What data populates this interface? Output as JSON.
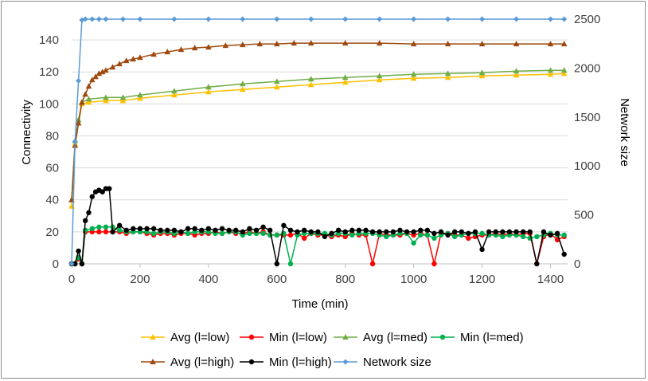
{
  "chart_data": {
    "type": "line",
    "title": "",
    "xlabel": "Time (min)",
    "ylabel": "Connectivity",
    "y2label": "Network size",
    "xlim": [
      0,
      1450
    ],
    "ylim": [
      0,
      153
    ],
    "y2lim": [
      0,
      2500
    ],
    "xticks": [
      0,
      200,
      400,
      600,
      800,
      1000,
      1200,
      1400
    ],
    "yticks": [
      0,
      20,
      40,
      60,
      80,
      100,
      120,
      140
    ],
    "y2ticks": [
      0,
      500,
      1000,
      1500,
      2000,
      2500
    ],
    "grid": "horizontal",
    "legend_position": "bottom",
    "series": [
      {
        "name": "Avg (l=low)",
        "color": "#FFC000",
        "marker": "triangle",
        "axis": "left",
        "x": [
          0,
          10,
          20,
          30,
          50,
          100,
          150,
          200,
          300,
          400,
          500,
          600,
          700,
          800,
          900,
          1000,
          1100,
          1200,
          1300,
          1400,
          1440
        ],
        "y": [
          36,
          75,
          88,
          100,
          101,
          102,
          102,
          103.5,
          105.5,
          107.5,
          109,
          110.5,
          112,
          113.5,
          115,
          116,
          116.5,
          117.5,
          118,
          118.5,
          119
        ]
      },
      {
        "name": "Min (l=low)",
        "color": "#FF0000",
        "marker": "circle",
        "axis": "left",
        "x": [
          0,
          10,
          20,
          30,
          40,
          60,
          80,
          100,
          120,
          140,
          160,
          180,
          200,
          220,
          240,
          260,
          280,
          300,
          320,
          340,
          360,
          380,
          400,
          420,
          440,
          460,
          480,
          500,
          520,
          540,
          560,
          580,
          600,
          620,
          640,
          660,
          680,
          700,
          720,
          740,
          760,
          780,
          800,
          820,
          840,
          860,
          880,
          900,
          920,
          940,
          960,
          980,
          1000,
          1020,
          1040,
          1060,
          1080,
          1100,
          1120,
          1140,
          1160,
          1180,
          1200,
          1220,
          1240,
          1260,
          1280,
          1300,
          1320,
          1340,
          1360,
          1380,
          1400,
          1420,
          1440
        ],
        "y": [
          0,
          0,
          3,
          0,
          20,
          20,
          20,
          20,
          20,
          20,
          19,
          20,
          20,
          19,
          18,
          19,
          19,
          18,
          19,
          19,
          18,
          19,
          19,
          20,
          19,
          20,
          19,
          19,
          20,
          19,
          20,
          18,
          18,
          18,
          18,
          19,
          16,
          19,
          18,
          18,
          17,
          18,
          17,
          19,
          18,
          18,
          0,
          19,
          18,
          18,
          18,
          19,
          18,
          19,
          18,
          0,
          19,
          19,
          18,
          18,
          16,
          17,
          18,
          18,
          19,
          18,
          19,
          18,
          19,
          19,
          0,
          17,
          19,
          15,
          17
        ]
      },
      {
        "name": "Avg (l=med)",
        "color": "#70AD47",
        "marker": "triangle",
        "axis": "left",
        "x": [
          0,
          10,
          20,
          30,
          50,
          100,
          150,
          200,
          300,
          400,
          500,
          600,
          700,
          800,
          900,
          1000,
          1100,
          1200,
          1300,
          1400,
          1440
        ],
        "y": [
          40,
          77,
          90,
          101,
          103,
          104,
          104,
          105.5,
          108,
          110.5,
          112.5,
          114,
          115.5,
          116.5,
          117.5,
          118.5,
          119,
          119.5,
          120.5,
          121,
          121
        ]
      },
      {
        "name": "Min (l=med)",
        "color": "#00B050",
        "marker": "circle",
        "axis": "left",
        "x": [
          0,
          10,
          20,
          30,
          40,
          60,
          80,
          100,
          120,
          140,
          160,
          180,
          200,
          220,
          240,
          260,
          280,
          300,
          320,
          340,
          360,
          380,
          400,
          420,
          440,
          460,
          480,
          500,
          520,
          540,
          560,
          580,
          600,
          620,
          640,
          660,
          680,
          700,
          720,
          740,
          760,
          780,
          800,
          820,
          840,
          860,
          880,
          900,
          920,
          940,
          960,
          980,
          1000,
          1020,
          1040,
          1060,
          1080,
          1100,
          1120,
          1140,
          1160,
          1180,
          1200,
          1220,
          1240,
          1260,
          1280,
          1300,
          1320,
          1340,
          1360,
          1380,
          1400,
          1420,
          1440
        ],
        "y": [
          0,
          0,
          4,
          0,
          21,
          22,
          23,
          23,
          23,
          21,
          20,
          20,
          20,
          20,
          19,
          20,
          20,
          19,
          20,
          19,
          20,
          20,
          20,
          19,
          19,
          20,
          20,
          18,
          19,
          19,
          19,
          18,
          18,
          19,
          0,
          18,
          19,
          19,
          19,
          19,
          18,
          19,
          19,
          18,
          19,
          19,
          19,
          18,
          17,
          18,
          19,
          19,
          13,
          18,
          18,
          16,
          18,
          19,
          17,
          18,
          19,
          19,
          19,
          18,
          18,
          17,
          18,
          18,
          17,
          16,
          17,
          18,
          19,
          18,
          18
        ]
      },
      {
        "name": "Avg (l=high)",
        "color": "#9E480E",
        "marker": "triangle",
        "axis": "left",
        "x": [
          0,
          10,
          20,
          30,
          40,
          50,
          60,
          70,
          80,
          90,
          100,
          120,
          140,
          160,
          180,
          200,
          240,
          280,
          320,
          360,
          400,
          450,
          500,
          550,
          600,
          650,
          700,
          800,
          900,
          1000,
          1100,
          1200,
          1300,
          1400,
          1440
        ],
        "y": [
          40,
          74,
          88,
          101,
          106,
          111,
          115,
          117,
          119,
          120,
          121,
          123,
          125,
          127,
          128,
          129,
          131,
          132.5,
          134,
          135,
          135.5,
          136.5,
          137,
          137.5,
          137.5,
          138,
          138,
          138,
          138,
          137.5,
          137.5,
          137.5,
          137.5,
          137.5,
          137.5
        ]
      },
      {
        "name": "Min (l=high)",
        "color": "#000000",
        "marker": "circle",
        "axis": "left",
        "x": [
          0,
          10,
          20,
          30,
          40,
          50,
          60,
          70,
          80,
          90,
          100,
          110,
          120,
          140,
          160,
          180,
          200,
          220,
          240,
          260,
          280,
          300,
          320,
          340,
          360,
          380,
          400,
          420,
          440,
          460,
          480,
          500,
          520,
          540,
          560,
          580,
          600,
          620,
          640,
          660,
          680,
          700,
          720,
          740,
          760,
          780,
          800,
          820,
          840,
          860,
          880,
          900,
          920,
          940,
          960,
          980,
          1000,
          1020,
          1040,
          1060,
          1080,
          1100,
          1120,
          1140,
          1160,
          1180,
          1200,
          1220,
          1240,
          1260,
          1280,
          1300,
          1320,
          1340,
          1360,
          1380,
          1400,
          1420,
          1440
        ],
        "y": [
          0,
          0,
          8,
          0,
          27,
          32,
          42,
          45,
          46,
          45,
          47,
          47,
          20,
          24,
          21,
          22,
          22,
          22,
          22,
          21,
          21,
          21,
          20,
          22,
          22,
          21,
          22,
          21,
          22,
          21,
          21,
          20,
          22,
          21,
          23,
          21,
          0,
          24,
          21,
          20,
          21,
          20,
          20,
          17,
          19,
          21,
          20,
          21,
          21,
          21,
          20,
          20,
          20,
          20,
          21,
          20,
          20,
          21,
          21,
          19,
          20,
          18,
          20,
          20,
          19,
          20,
          9,
          20,
          20,
          20,
          20,
          20,
          20,
          20,
          0,
          20,
          18,
          19,
          6
        ]
      },
      {
        "name": "Network size",
        "color": "#5B9BD5",
        "marker": "diamond",
        "axis": "right",
        "x": [
          0,
          10,
          20,
          30,
          40,
          60,
          80,
          100,
          150,
          200,
          300,
          400,
          500,
          600,
          700,
          800,
          900,
          1000,
          1100,
          1200,
          1300,
          1400,
          1440
        ],
        "y": [
          0,
          1250,
          1870,
          2490,
          2500,
          2500,
          2500,
          2500,
          2500,
          2500,
          2500,
          2500,
          2500,
          2500,
          2500,
          2500,
          2500,
          2500,
          2500,
          2500,
          2500,
          2500,
          2500
        ]
      }
    ]
  }
}
